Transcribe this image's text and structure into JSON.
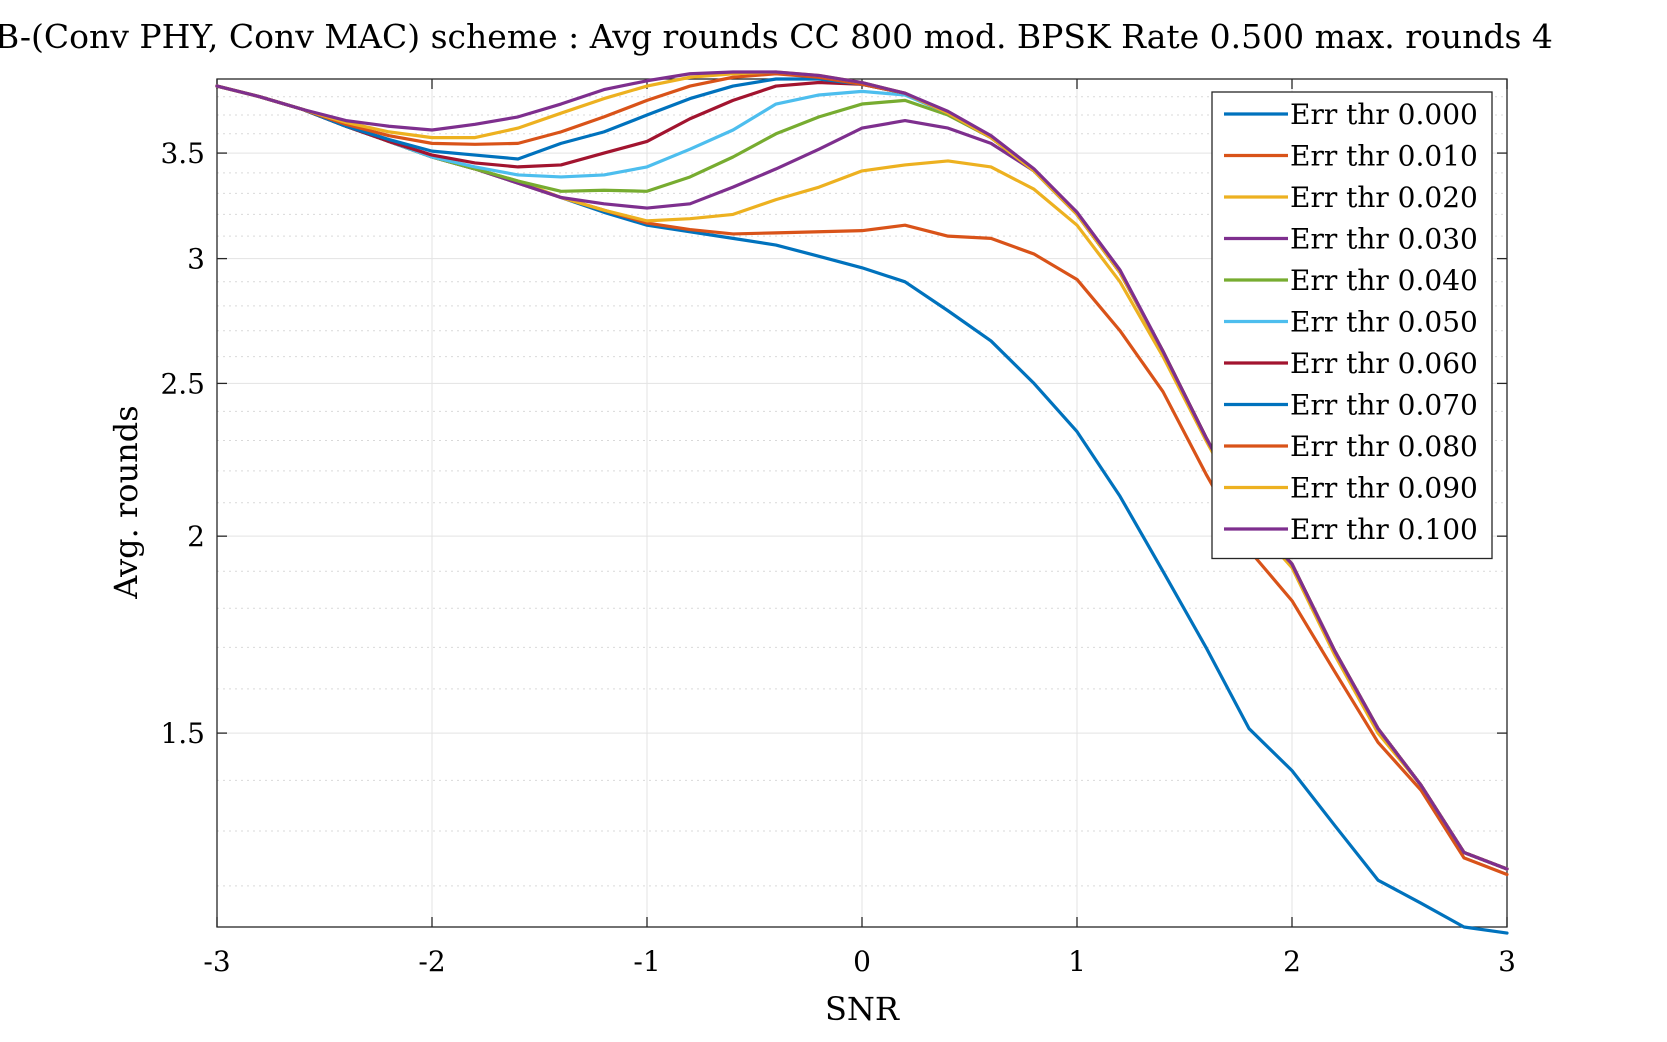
{
  "chart_data": {
    "type": "line",
    "title": "B-(Conv PHY, Conv MAC) scheme : Avg rounds CC 800 mod. BPSK Rate 0.500 max. rounds 4",
    "xlabel": "SNR",
    "ylabel": "Avg. rounds",
    "xlim": [
      -3,
      3
    ],
    "ylim": [
      1.13,
      3.9
    ],
    "y_scale": "log",
    "grid": true,
    "minor_grid": true,
    "legend_position": "top-right",
    "x_ticks": [
      -3,
      -2,
      -1,
      0,
      1,
      2,
      3
    ],
    "x_tick_labels": [
      "-3",
      "-2",
      "-1",
      "0",
      "1",
      "2",
      "3"
    ],
    "y_ticks": [
      1.5,
      2,
      2.5,
      3,
      3.5
    ],
    "y_tick_labels": [
      "1.5",
      "2",
      "2.5",
      "3",
      "3.5"
    ],
    "x": [
      -3.0,
      -2.8,
      -2.6,
      -2.4,
      -2.2,
      -2.0,
      -1.8,
      -1.6,
      -1.4,
      -1.2,
      -1.0,
      -0.8,
      -0.6,
      -0.4,
      -0.2,
      0.0,
      0.2,
      0.4,
      0.6,
      0.8,
      1.0,
      1.2,
      1.4,
      1.6,
      1.8,
      2.0,
      2.2,
      2.4,
      2.6,
      2.8,
      3.0
    ],
    "series": [
      {
        "name": "Err thr 0.000",
        "color": "#0072BD",
        "values": [
          3.86,
          3.8,
          3.73,
          3.64,
          3.56,
          3.48,
          3.42,
          3.35,
          3.28,
          3.21,
          3.15,
          3.12,
          3.09,
          3.06,
          3.01,
          2.96,
          2.9,
          2.78,
          2.66,
          2.5,
          2.33,
          2.12,
          1.9,
          1.7,
          1.51,
          1.42,
          1.31,
          1.21,
          1.17,
          1.13,
          1.12
        ]
      },
      {
        "name": "Err thr 0.010",
        "color": "#D95319",
        "values": [
          3.86,
          3.8,
          3.73,
          3.64,
          3.56,
          3.48,
          3.42,
          3.35,
          3.28,
          3.22,
          3.16,
          3.13,
          3.11,
          3.115,
          3.12,
          3.125,
          3.15,
          3.1,
          3.09,
          3.02,
          2.91,
          2.7,
          2.47,
          2.19,
          1.96,
          1.82,
          1.64,
          1.48,
          1.38,
          1.25,
          1.22
        ]
      },
      {
        "name": "Err thr 0.020",
        "color": "#EDB120",
        "values": [
          3.86,
          3.8,
          3.73,
          3.64,
          3.56,
          3.48,
          3.42,
          3.36,
          3.28,
          3.22,
          3.17,
          3.18,
          3.2,
          3.27,
          3.33,
          3.41,
          3.44,
          3.46,
          3.43,
          3.32,
          3.15,
          2.9,
          2.6,
          2.3,
          2.05,
          1.91,
          1.68,
          1.5,
          1.39,
          1.26,
          1.23
        ]
      },
      {
        "name": "Err thr 0.030",
        "color": "#7E2F8E",
        "values": [
          3.86,
          3.8,
          3.73,
          3.64,
          3.56,
          3.48,
          3.42,
          3.35,
          3.28,
          3.25,
          3.23,
          3.25,
          3.33,
          3.42,
          3.52,
          3.63,
          3.67,
          3.63,
          3.55,
          3.41,
          3.21,
          2.95,
          2.62,
          2.31,
          2.06,
          1.92,
          1.69,
          1.51,
          1.39,
          1.26,
          1.23
        ]
      },
      {
        "name": "Err thr 0.040",
        "color": "#77AC30",
        "values": [
          3.86,
          3.8,
          3.73,
          3.64,
          3.56,
          3.48,
          3.42,
          3.36,
          3.31,
          3.315,
          3.31,
          3.38,
          3.48,
          3.6,
          3.69,
          3.76,
          3.78,
          3.7,
          3.58,
          3.41,
          3.2,
          2.94,
          2.62,
          2.31,
          2.06,
          1.92,
          1.69,
          1.51,
          1.39,
          1.26,
          1.23
        ]
      },
      {
        "name": "Err thr 0.050",
        "color": "#4DBEEE",
        "values": [
          3.86,
          3.8,
          3.73,
          3.64,
          3.56,
          3.48,
          3.43,
          3.39,
          3.38,
          3.39,
          3.43,
          3.52,
          3.62,
          3.76,
          3.81,
          3.83,
          3.81,
          3.71,
          3.58,
          3.41,
          3.2,
          2.94,
          2.62,
          2.31,
          2.06,
          1.92,
          1.69,
          1.51,
          1.39,
          1.26,
          1.23
        ]
      },
      {
        "name": "Err thr 0.060",
        "color": "#A2142F",
        "values": [
          3.86,
          3.8,
          3.73,
          3.64,
          3.56,
          3.49,
          3.45,
          3.43,
          3.44,
          3.5,
          3.56,
          3.68,
          3.78,
          3.86,
          3.88,
          3.87,
          3.82,
          3.71,
          3.58,
          3.41,
          3.2,
          2.94,
          2.62,
          2.31,
          2.06,
          1.92,
          1.69,
          1.51,
          1.39,
          1.26,
          1.23
        ]
      },
      {
        "name": "Err thr 0.070",
        "color": "#0072BD",
        "values": [
          3.86,
          3.8,
          3.73,
          3.64,
          3.57,
          3.51,
          3.49,
          3.47,
          3.55,
          3.61,
          3.7,
          3.79,
          3.86,
          3.9,
          3.9,
          3.87,
          3.82,
          3.71,
          3.58,
          3.41,
          3.2,
          2.94,
          2.62,
          2.31,
          2.06,
          1.92,
          1.69,
          1.51,
          1.39,
          1.26,
          1.23
        ]
      },
      {
        "name": "Err thr 0.080",
        "color": "#D95319",
        "values": [
          3.86,
          3.8,
          3.73,
          3.65,
          3.59,
          3.55,
          3.545,
          3.55,
          3.61,
          3.69,
          3.78,
          3.86,
          3.91,
          3.93,
          3.91,
          3.87,
          3.82,
          3.71,
          3.58,
          3.41,
          3.2,
          2.94,
          2.62,
          2.31,
          2.06,
          1.92,
          1.69,
          1.51,
          1.39,
          1.26,
          1.23
        ]
      },
      {
        "name": "Err thr 0.090",
        "color": "#EDB120",
        "values": [
          3.86,
          3.8,
          3.73,
          3.66,
          3.61,
          3.58,
          3.58,
          3.63,
          3.71,
          3.79,
          3.86,
          3.91,
          3.93,
          3.94,
          3.92,
          3.88,
          3.82,
          3.71,
          3.58,
          3.41,
          3.2,
          2.94,
          2.62,
          2.31,
          2.06,
          1.92,
          1.69,
          1.51,
          1.39,
          1.26,
          1.23
        ]
      },
      {
        "name": "Err thr 0.100",
        "color": "#7E2F8E",
        "values": [
          3.86,
          3.8,
          3.73,
          3.67,
          3.64,
          3.62,
          3.65,
          3.69,
          3.76,
          3.84,
          3.89,
          3.93,
          3.94,
          3.94,
          3.92,
          3.88,
          3.82,
          3.72,
          3.59,
          3.42,
          3.21,
          2.95,
          2.62,
          2.31,
          2.06,
          1.92,
          1.69,
          1.51,
          1.39,
          1.26,
          1.23
        ]
      }
    ]
  }
}
